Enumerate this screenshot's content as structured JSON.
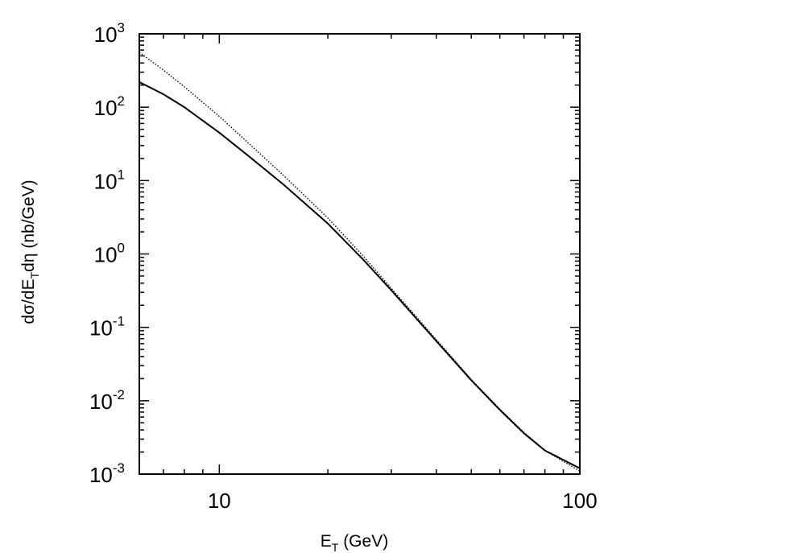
{
  "chart_data": {
    "type": "line",
    "x_scale": "log",
    "y_scale": "log",
    "xlim": [
      6,
      100
    ],
    "ylim": [
      0.001,
      1000
    ],
    "xlabel": {
      "main": "E",
      "sub": "T",
      "rest": " (GeV)"
    },
    "ylabel": {
      "pre": "dσ/dE",
      "sub": "T",
      "rest": "dη (nb/GeV)"
    },
    "x_ticks": [
      {
        "value": 10,
        "label": "10"
      },
      {
        "value": 100,
        "label": "100"
      }
    ],
    "y_ticks": [
      {
        "value": 1000,
        "base": "10",
        "exp": "3"
      },
      {
        "value": 100,
        "base": "10",
        "exp": "2"
      },
      {
        "value": 10,
        "base": "10",
        "exp": "1"
      },
      {
        "value": 1,
        "base": "10",
        "exp": "0"
      },
      {
        "value": 0.1,
        "base": "10",
        "exp": "-1"
      },
      {
        "value": 0.01,
        "base": "10",
        "exp": "-2"
      },
      {
        "value": 0.001,
        "base": "10",
        "exp": "-3"
      }
    ],
    "grid": false,
    "legend": "none",
    "series": [
      {
        "style": "solid",
        "color": "#000000",
        "x": [
          6,
          7,
          8,
          10,
          12,
          15,
          20,
          25,
          30,
          40,
          50,
          60,
          70,
          80,
          100
        ],
        "y": [
          220,
          150,
          100,
          45,
          22,
          9,
          2.6,
          0.85,
          0.32,
          0.065,
          0.019,
          0.0075,
          0.0036,
          0.0021,
          0.0012
        ]
      },
      {
        "style": "dotted",
        "color": "#000000",
        "x": [
          6,
          7,
          8,
          10,
          12,
          15,
          20,
          25,
          30,
          40,
          50,
          60,
          70,
          80,
          100
        ],
        "y": [
          560,
          320,
          190,
          75,
          33,
          12,
          3.1,
          0.95,
          0.34,
          0.068,
          0.0195,
          0.0077,
          0.0037,
          0.0021,
          0.0011
        ]
      }
    ]
  }
}
